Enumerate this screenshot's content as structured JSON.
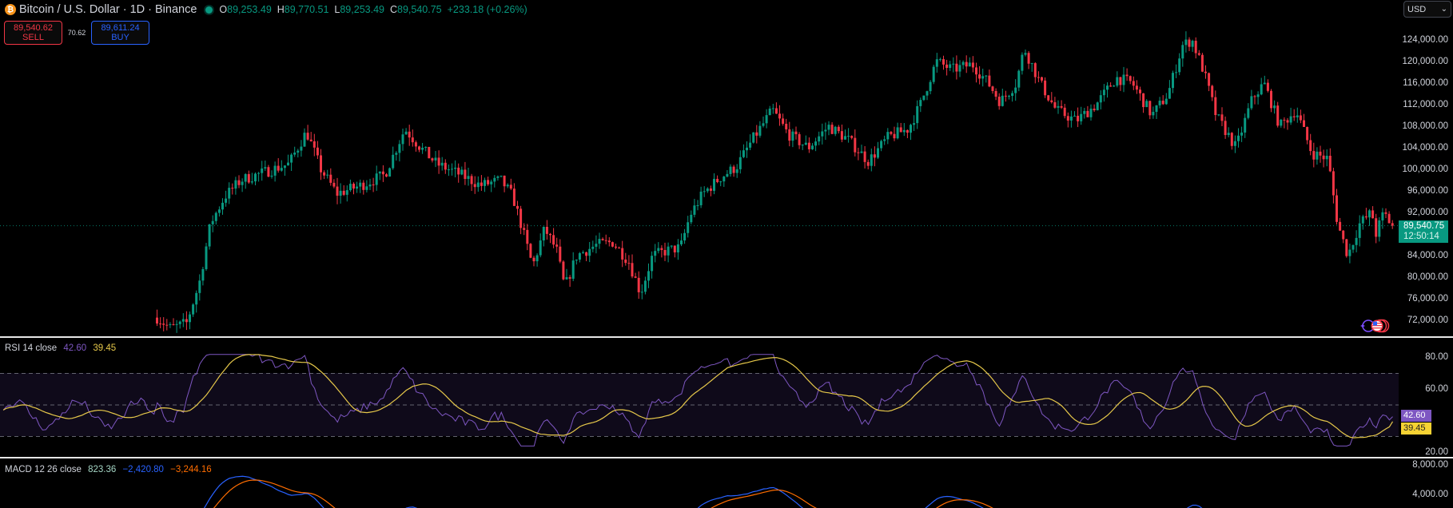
{
  "header": {
    "logo_glyph": "₿",
    "symbol_title": "Bitcoin / U.S. Dollar · 1D · Binance",
    "ohlc": [
      {
        "key": "O",
        "value": "89,253.49"
      },
      {
        "key": "H",
        "value": "89,770.51"
      },
      {
        "key": "L",
        "value": "89,253.49"
      },
      {
        "key": "C",
        "value": "89,540.75"
      }
    ],
    "change": "+233.18 (+0.26%)"
  },
  "trade": {
    "sell_price": "89,540.62",
    "sell_label": "SELL",
    "spread": "70.62",
    "buy_price": "89,611.24",
    "buy_label": "BUY"
  },
  "currency_select": {
    "value": "USD",
    "chevron": "⌄"
  },
  "colors": {
    "up": "#089981",
    "down": "#f23645",
    "rsi": "#7e57c2",
    "rsi_ma": "#e6c84a",
    "macd": "#2962ff",
    "signal": "#ff6d00",
    "background": "#000000"
  },
  "price_axis": {
    "ticks": [
      "124,000.00",
      "120,000.00",
      "116,000.00",
      "112,000.00",
      "108,000.00",
      "104,000.00",
      "100,000.00",
      "96,000.00",
      "92,000.00",
      "84,000.00",
      "80,000.00",
      "76,000.00",
      "72,000.00"
    ],
    "tick_values": [
      124000,
      120000,
      116000,
      112000,
      108000,
      104000,
      100000,
      96000,
      92000,
      84000,
      80000,
      76000,
      72000
    ],
    "last_price": "89,540.75",
    "countdown": "12:50:14"
  },
  "rsi": {
    "title": "RSI 14 close",
    "value": "42.60",
    "ma_value": "39.45",
    "axis_ticks": [
      "80.00",
      "60.00",
      "20.00"
    ],
    "upper_band": 70,
    "middle_band": 50,
    "lower_band": 30
  },
  "macd": {
    "title": "MACD 12 26 close",
    "histogram": "823.36",
    "macd_value": "−2,420.80",
    "signal_value": "−3,244.16",
    "axis_ticks": [
      "8,000.00",
      "4,000.00"
    ]
  },
  "chart_data": {
    "type": "candlestick",
    "title": "Bitcoin / U.S. Dollar · 1D · Binance",
    "ylim": [
      70000,
      126000
    ],
    "last_close": 89540.75,
    "price_path_keypoints": [
      [
        195,
        72500
      ],
      [
        212,
        70500
      ],
      [
        232,
        71500
      ],
      [
        248,
        79000
      ],
      [
        262,
        90000
      ],
      [
        280,
        95000
      ],
      [
        300,
        98000
      ],
      [
        330,
        99500
      ],
      [
        360,
        101000
      ],
      [
        382,
        107000
      ],
      [
        400,
        100000
      ],
      [
        420,
        95500
      ],
      [
        450,
        97000
      ],
      [
        480,
        99000
      ],
      [
        505,
        107500
      ],
      [
        525,
        104000
      ],
      [
        545,
        101000
      ],
      [
        575,
        99000
      ],
      [
        600,
        97000
      ],
      [
        625,
        98000
      ],
      [
        640,
        95000
      ],
      [
        650,
        90000
      ],
      [
        665,
        82000
      ],
      [
        680,
        89000
      ],
      [
        695,
        85000
      ],
      [
        705,
        78000
      ],
      [
        720,
        84000
      ],
      [
        745,
        86000
      ],
      [
        765,
        86500
      ],
      [
        785,
        83000
      ],
      [
        800,
        77000
      ],
      [
        815,
        84000
      ],
      [
        835,
        85000
      ],
      [
        850,
        85500
      ],
      [
        862,
        91500
      ],
      [
        878,
        95500
      ],
      [
        900,
        98500
      ],
      [
        920,
        100500
      ],
      [
        940,
        105500
      ],
      [
        965,
        111000
      ],
      [
        985,
        106500
      ],
      [
        1010,
        104000
      ],
      [
        1035,
        108000
      ],
      [
        1060,
        105500
      ],
      [
        1085,
        101500
      ],
      [
        1110,
        106000
      ],
      [
        1135,
        107500
      ],
      [
        1150,
        112000
      ],
      [
        1170,
        120000
      ],
      [
        1190,
        118500
      ],
      [
        1215,
        119500
      ],
      [
        1235,
        116000
      ],
      [
        1250,
        112500
      ],
      [
        1270,
        116000
      ],
      [
        1280,
        122500
      ],
      [
        1300,
        116000
      ],
      [
        1320,
        111000
      ],
      [
        1345,
        109000
      ],
      [
        1370,
        112000
      ],
      [
        1395,
        117000
      ],
      [
        1415,
        116000
      ],
      [
        1440,
        110000
      ],
      [
        1460,
        114000
      ],
      [
        1478,
        123000
      ],
      [
        1490,
        124000
      ],
      [
        1505,
        118000
      ],
      [
        1520,
        110000
      ],
      [
        1545,
        104000
      ],
      [
        1565,
        113000
      ],
      [
        1580,
        116000
      ],
      [
        1600,
        108000
      ],
      [
        1620,
        111000
      ],
      [
        1640,
        103000
      ],
      [
        1660,
        102000
      ],
      [
        1672,
        90000
      ],
      [
        1685,
        84000
      ],
      [
        1700,
        90000
      ],
      [
        1715,
        92000
      ],
      [
        1720,
        88000
      ],
      [
        1730,
        92000
      ],
      [
        1738,
        90000
      ],
      [
        1744,
        89540
      ]
    ]
  }
}
